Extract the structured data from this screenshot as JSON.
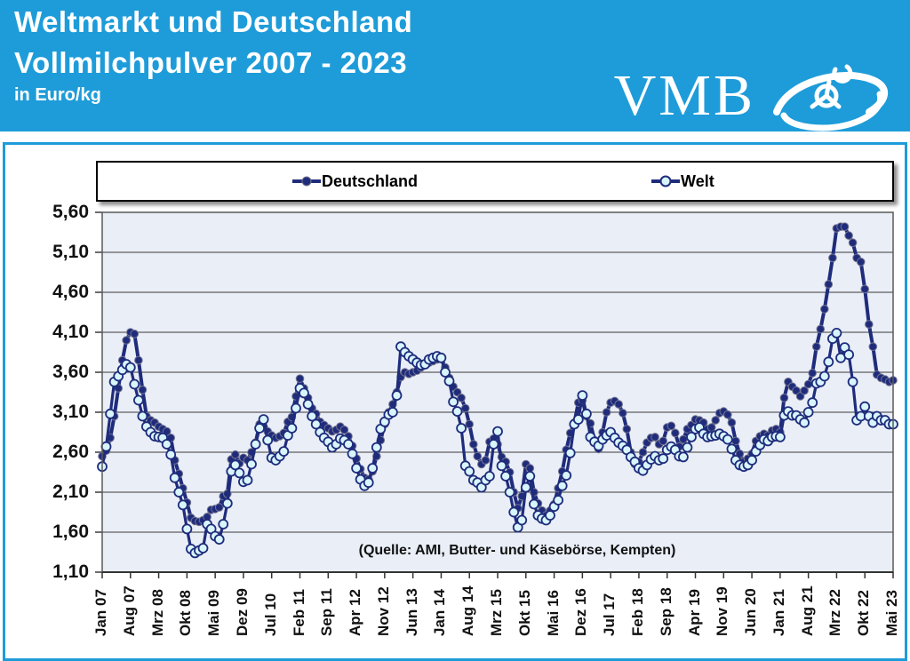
{
  "header": {
    "title_line1": "Weltmarkt und Deutschland",
    "title_line2": "Vollmilchpulver 2007 - 2023",
    "subtitle": "in Euro/kg",
    "logo_text": "VMB",
    "background_color": "#1E9CD9",
    "text_color": "#FFFFFF"
  },
  "chart_data": {
    "type": "line",
    "title": "Weltmarkt und Deutschland Vollmilchpulver 2007 - 2023",
    "ylabel": "Euro/kg",
    "ylim": [
      1.1,
      5.6
    ],
    "grid": true,
    "legend_position": "top",
    "plot_bg": "#E9EEF7",
    "line_color": "#1F2C7C",
    "x_start": "Jan 2007",
    "x_end": "Mai 2023",
    "x_tick_interval_months": 7,
    "x_tick_labels": [
      "Jan 07",
      "Aug 07",
      "Mrz 08",
      "Okt 08",
      "Mai 09",
      "Dez 09",
      "Jul 10",
      "Feb 11",
      "Sep 11",
      "Apr 12",
      "Nov 12",
      "Jun 13",
      "Jan 14",
      "Aug 14",
      "Mrz 15",
      "Okt 15",
      "Mai 16",
      "Dez 16",
      "Jul 17",
      "Feb 18",
      "Sep 18",
      "Apr 19",
      "Nov 19",
      "Jun 20",
      "Jan 21",
      "Aug 21",
      "Mrz 22",
      "Okt 22",
      "Mai 23"
    ],
    "y_tick_labels": [
      "5,60",
      "5,10",
      "4,60",
      "4,10",
      "3,60",
      "3,10",
      "2,60",
      "2,10",
      "1,60",
      "1,10"
    ],
    "y_tick_values": [
      5.6,
      5.1,
      4.6,
      4.1,
      3.6,
      3.1,
      2.6,
      2.1,
      1.6,
      1.1
    ],
    "source_note": "(Quelle: AMI, Butter- und Käsebörse, Kempten)",
    "series": [
      {
        "name": "Deutschland",
        "marker": "filled-circle",
        "marker_fill": "#1F2C7C",
        "marker_stroke": "#75758f",
        "values": [
          2.55,
          2.62,
          2.78,
          3.05,
          3.4,
          3.75,
          4.0,
          4.1,
          4.08,
          3.75,
          3.38,
          3.05,
          3.0,
          2.97,
          2.92,
          2.89,
          2.86,
          2.78,
          2.5,
          2.33,
          2.15,
          1.97,
          1.78,
          1.74,
          1.73,
          1.75,
          1.79,
          1.88,
          1.89,
          1.91,
          2.05,
          2.08,
          2.51,
          2.57,
          2.46,
          2.53,
          2.5,
          2.6,
          2.72,
          2.95,
          3.0,
          2.86,
          2.81,
          2.78,
          2.8,
          2.84,
          2.98,
          3.04,
          3.3,
          3.52,
          3.4,
          3.28,
          3.15,
          3.08,
          2.98,
          2.94,
          2.9,
          2.86,
          2.88,
          2.92,
          2.88,
          2.8,
          2.68,
          2.52,
          2.39,
          2.28,
          2.26,
          2.36,
          2.55,
          2.75,
          2.95,
          3.1,
          3.2,
          3.35,
          3.54,
          3.6,
          3.58,
          3.6,
          3.62,
          3.66,
          3.7,
          3.72,
          3.74,
          3.76,
          3.78,
          3.66,
          3.53,
          3.42,
          3.35,
          3.28,
          3.15,
          2.95,
          2.7,
          2.55,
          2.45,
          2.5,
          2.73,
          2.77,
          2.7,
          2.54,
          2.48,
          2.35,
          2.1,
          1.9,
          2.05,
          2.45,
          2.4,
          2.1,
          1.96,
          1.87,
          1.81,
          1.87,
          1.95,
          2.15,
          2.36,
          2.63,
          2.84,
          2.97,
          3.22,
          3.25,
          3.05,
          2.96,
          2.75,
          2.64,
          2.85,
          3.1,
          3.22,
          3.24,
          3.2,
          3.09,
          2.89,
          2.6,
          2.45,
          2.48,
          2.6,
          2.72,
          2.78,
          2.79,
          2.7,
          2.74,
          2.91,
          2.93,
          2.84,
          2.67,
          2.76,
          2.89,
          2.94,
          3.01,
          3.0,
          2.97,
          2.89,
          2.91,
          3.0,
          3.09,
          3.11,
          3.07,
          2.97,
          2.74,
          2.58,
          2.48,
          2.52,
          2.58,
          2.74,
          2.8,
          2.83,
          2.81,
          2.87,
          2.89,
          2.85,
          3.28,
          3.48,
          3.42,
          3.37,
          3.3,
          3.37,
          3.45,
          3.59,
          3.92,
          4.14,
          4.39,
          4.7,
          5.03,
          5.4,
          5.42,
          5.42,
          5.31,
          5.22,
          5.03,
          4.98,
          4.64,
          4.2,
          3.92,
          3.57,
          3.53,
          3.51,
          3.48,
          3.5
        ]
      },
      {
        "name": "Welt",
        "marker": "open-circle",
        "marker_fill": "#D9F5FC",
        "marker_stroke": "#1F2C7C",
        "values": [
          2.42,
          2.67,
          3.08,
          3.48,
          3.55,
          3.63,
          3.7,
          3.66,
          3.45,
          3.25,
          3.05,
          2.92,
          2.85,
          2.8,
          2.79,
          2.78,
          2.7,
          2.57,
          2.28,
          2.1,
          1.94,
          1.64,
          1.39,
          1.34,
          1.37,
          1.4,
          1.7,
          1.64,
          1.55,
          1.51,
          1.7,
          1.96,
          2.36,
          2.44,
          2.34,
          2.23,
          2.25,
          2.45,
          2.7,
          2.9,
          3.01,
          2.75,
          2.53,
          2.5,
          2.55,
          2.61,
          2.81,
          2.9,
          3.15,
          3.4,
          3.34,
          3.2,
          3.05,
          2.95,
          2.85,
          2.78,
          2.73,
          2.66,
          2.7,
          2.77,
          2.75,
          2.7,
          2.58,
          2.4,
          2.26,
          2.18,
          2.22,
          2.4,
          2.66,
          2.89,
          2.98,
          3.07,
          3.1,
          3.31,
          3.92,
          3.85,
          3.8,
          3.76,
          3.72,
          3.69,
          3.7,
          3.76,
          3.78,
          3.8,
          3.78,
          3.6,
          3.49,
          3.23,
          3.11,
          2.9,
          2.43,
          2.36,
          2.25,
          2.22,
          2.16,
          2.25,
          2.3,
          2.7,
          2.86,
          2.43,
          2.3,
          2.1,
          1.85,
          1.66,
          1.75,
          2.16,
          2.3,
          1.95,
          1.81,
          1.77,
          1.75,
          1.81,
          1.92,
          2.0,
          2.18,
          2.31,
          2.59,
          2.95,
          3.01,
          3.31,
          3.08,
          2.79,
          2.73,
          2.68,
          2.76,
          2.81,
          2.85,
          2.78,
          2.72,
          2.68,
          2.63,
          2.54,
          2.48,
          2.4,
          2.37,
          2.44,
          2.51,
          2.55,
          2.5,
          2.52,
          2.63,
          2.67,
          2.63,
          2.55,
          2.54,
          2.66,
          2.79,
          2.89,
          2.91,
          2.83,
          2.79,
          2.8,
          2.81,
          2.83,
          2.8,
          2.76,
          2.64,
          2.5,
          2.44,
          2.42,
          2.44,
          2.5,
          2.61,
          2.69,
          2.76,
          2.74,
          2.79,
          2.8,
          2.79,
          3.06,
          3.11,
          3.06,
          3.06,
          3.01,
          2.97,
          3.1,
          3.22,
          3.46,
          3.48,
          3.55,
          3.73,
          4.02,
          4.09,
          3.78,
          3.91,
          3.82,
          3.48,
          3.0,
          3.05,
          3.17,
          3.05,
          2.97,
          3.05,
          3.0,
          3.0,
          2.95,
          2.95
        ]
      }
    ]
  }
}
